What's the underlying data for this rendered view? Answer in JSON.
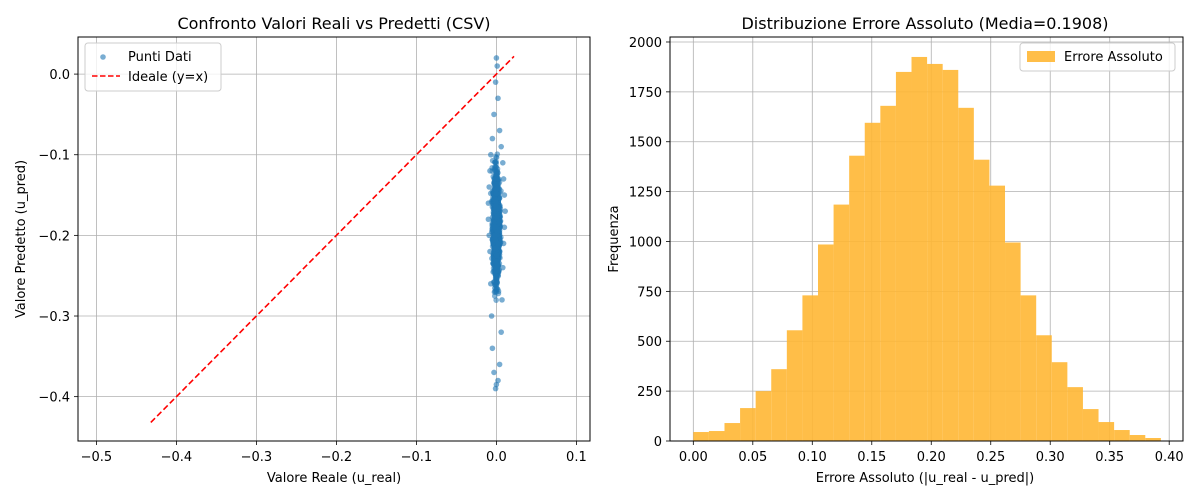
{
  "chart_data": [
    {
      "type": "scatter",
      "title": "Confronto Valori Reali vs Predetti (CSV)",
      "xlabel": "Valore Reale (u_real)",
      "ylabel": "Valore Predetto (u_pred)",
      "xlim": [
        -0.523,
        0.117
      ],
      "ylim": [
        -0.455,
        0.046
      ],
      "xticks": [
        -0.5,
        -0.4,
        -0.3,
        -0.2,
        -0.1,
        0.0,
        0.1
      ],
      "xtick_labels": [
        "−0.5",
        "−0.4",
        "−0.3",
        "−0.2",
        "−0.1",
        "0.0",
        "0.1"
      ],
      "yticks": [
        0.0,
        -0.1,
        -0.2,
        -0.3,
        -0.4
      ],
      "ytick_labels": [
        "0.0",
        "−0.1",
        "−0.2",
        "−0.3",
        "−0.4"
      ],
      "grid": true,
      "legend_position": "top-left",
      "series": [
        {
          "name": "Punti Dati",
          "kind": "points",
          "color": "#1f77b4",
          "x_center": 0.0,
          "x_spread": 0.006,
          "y_range": [
            -0.39,
            0.02
          ],
          "points": [
            [
              0.0,
              0.02
            ],
            [
              0.001,
              0.01
            ],
            [
              -0.001,
              -0.01
            ],
            [
              0.002,
              -0.03
            ],
            [
              -0.003,
              -0.05
            ],
            [
              0.004,
              -0.07
            ],
            [
              -0.005,
              -0.08
            ],
            [
              0.006,
              -0.09
            ],
            [
              -0.007,
              -0.1
            ],
            [
              0.008,
              -0.11
            ],
            [
              -0.008,
              -0.12
            ],
            [
              0.009,
              -0.13
            ],
            [
              -0.009,
              -0.14
            ],
            [
              0.01,
              -0.15
            ],
            [
              -0.01,
              -0.16
            ],
            [
              0.011,
              -0.17
            ],
            [
              -0.01,
              -0.18
            ],
            [
              0.01,
              -0.19
            ],
            [
              -0.009,
              -0.2
            ],
            [
              0.009,
              -0.21
            ],
            [
              -0.008,
              -0.22
            ],
            [
              0.008,
              -0.24
            ],
            [
              -0.007,
              -0.26
            ],
            [
              0.007,
              -0.28
            ],
            [
              -0.006,
              -0.3
            ],
            [
              0.006,
              -0.32
            ],
            [
              -0.005,
              -0.34
            ],
            [
              0.004,
              -0.36
            ],
            [
              -0.003,
              -0.37
            ],
            [
              0.002,
              -0.38
            ],
            [
              -0.001,
              -0.39
            ],
            [
              0.0,
              -0.385
            ]
          ]
        },
        {
          "name": "Ideale (y=x)",
          "kind": "line",
          "color": "#ff0000",
          "dash": true,
          "x": [
            -0.432,
            0.022
          ],
          "y": [
            -0.432,
            0.022
          ]
        }
      ]
    },
    {
      "type": "bar",
      "title": "Distribuzione Errore Assoluto (Media=0.1908)",
      "xlabel": "Errore Assoluto (|u_real - u_pred|)",
      "ylabel": "Frequenza",
      "xlim": [
        -0.0196,
        0.4116
      ],
      "ylim": [
        0,
        2025
      ],
      "xticks": [
        0.0,
        0.05,
        0.1,
        0.15,
        0.2,
        0.25,
        0.3,
        0.35,
        0.4
      ],
      "xtick_labels": [
        "0.00",
        "0.05",
        "0.10",
        "0.15",
        "0.20",
        "0.25",
        "0.30",
        "0.35",
        "0.40"
      ],
      "yticks": [
        0,
        250,
        500,
        750,
        1000,
        1250,
        1500,
        1750,
        2000
      ],
      "ytick_labels": [
        "0",
        "250",
        "500",
        "750",
        "1000",
        "1250",
        "1500",
        "1750",
        "2000"
      ],
      "grid": true,
      "legend_position": "top-right",
      "series": [
        {
          "name": "Errore Assoluto",
          "color": "#ffb734",
          "bin_start": 0.0,
          "bin_width": 0.0131,
          "values": [
            45,
            50,
            90,
            165,
            250,
            360,
            555,
            730,
            985,
            1185,
            1430,
            1595,
            1680,
            1850,
            1925,
            1890,
            1860,
            1670,
            1410,
            1280,
            995,
            730,
            530,
            395,
            270,
            160,
            95,
            55,
            30,
            15
          ]
        }
      ]
    }
  ]
}
